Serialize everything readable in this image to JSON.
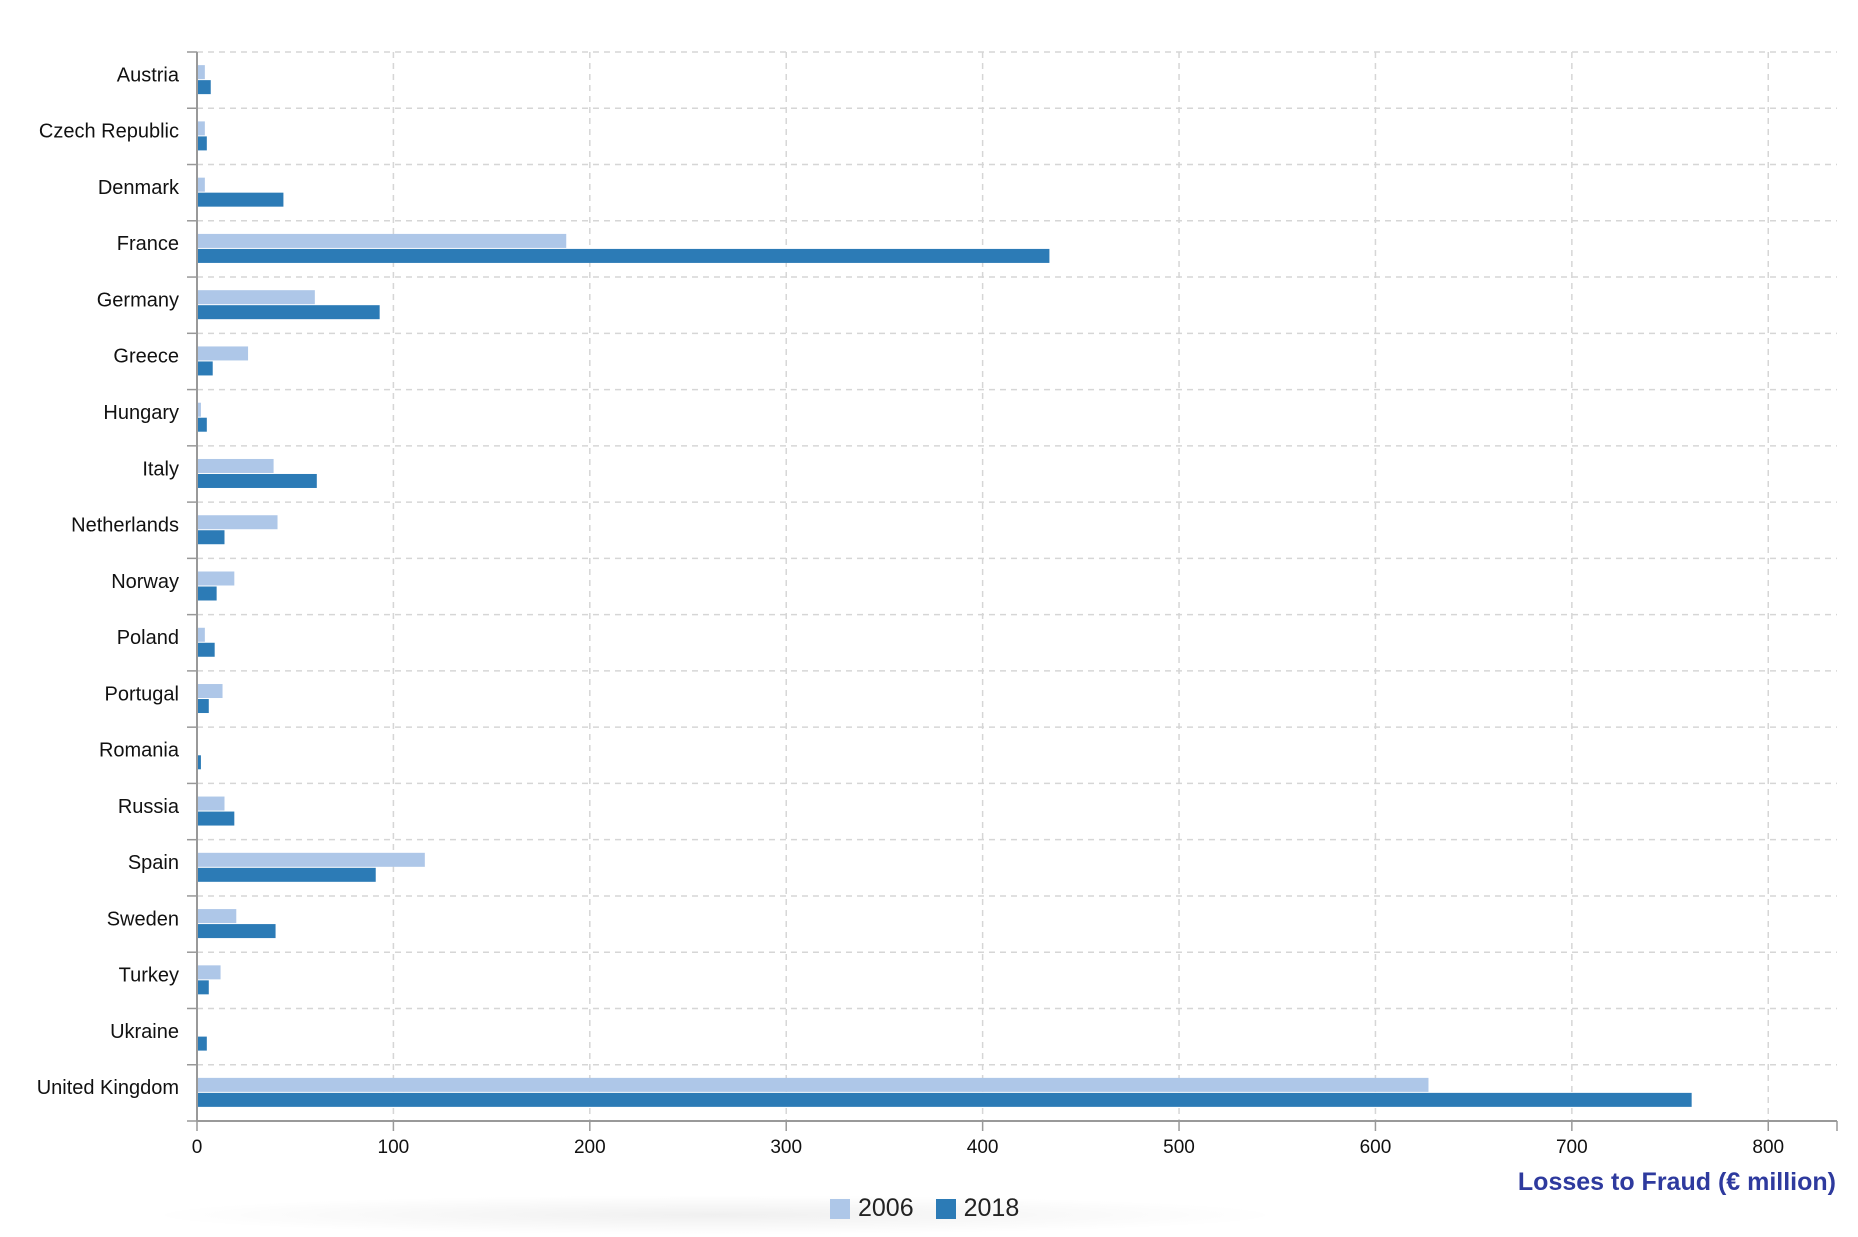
{
  "chart_data": {
    "type": "bar",
    "orientation": "horizontal",
    "categories": [
      "Austria",
      "Czech Republic",
      "Denmark",
      "France",
      "Germany",
      "Greece",
      "Hungary",
      "Italy",
      "Netherlands",
      "Norway",
      "Poland",
      "Portugal",
      "Romania",
      "Russia",
      "Spain",
      "Sweden",
      "Turkey",
      "Ukraine",
      "United Kingdom"
    ],
    "series": [
      {
        "name": "2006",
        "color": "#aec7e8",
        "values": [
          4,
          4,
          4,
          188,
          60,
          26,
          2,
          39,
          41,
          19,
          4,
          13,
          0.5,
          14,
          116,
          20,
          12,
          0.5,
          627
        ]
      },
      {
        "name": "2018",
        "color": "#2c7bb6",
        "values": [
          7,
          5,
          44,
          434,
          93,
          8,
          5,
          61,
          14,
          10,
          9,
          6,
          2,
          19,
          91,
          40,
          6,
          5,
          761
        ]
      }
    ],
    "xlabel": "Losses to Fraud (€ million)",
    "xlim": [
      0,
      835
    ],
    "xticks": [
      0,
      100,
      200,
      300,
      400,
      500,
      600,
      700,
      800
    ],
    "grid": true,
    "legend_position": "bottom"
  }
}
